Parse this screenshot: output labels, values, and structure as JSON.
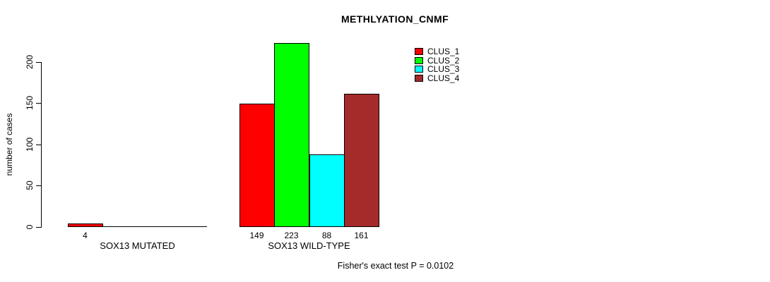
{
  "colors": {
    "background": "#FFFFFF",
    "axis": "#000000",
    "text": "#000000"
  },
  "chart_data": {
    "type": "bar",
    "title": "METHLYATION_CNMF",
    "ylabel": "number of cases",
    "xlabel": "",
    "ylim": [
      0,
      230
    ],
    "yticks": [
      0,
      50,
      100,
      150,
      200
    ],
    "grid": false,
    "legend_position": "top-right-inside",
    "series": [
      {
        "name": "CLUS_1",
        "color": "#FF0000"
      },
      {
        "name": "CLUS_2",
        "color": "#00FF00"
      },
      {
        "name": "CLUS_3",
        "color": "#00FFFF"
      },
      {
        "name": "CLUS_4",
        "color": "#A52A2A"
      }
    ],
    "categories": [
      "SOX13 MUTATED",
      "SOX13 WILD-TYPE"
    ],
    "groups": [
      {
        "label": "SOX13 MUTATED",
        "values": [
          4,
          0,
          0,
          0
        ],
        "bar_labels": [
          "4",
          "",
          "",
          ""
        ]
      },
      {
        "label": "SOX13 WILD-TYPE",
        "values": [
          149,
          223,
          88,
          161
        ],
        "bar_labels": [
          "149",
          "223",
          "88",
          "161"
        ]
      }
    ],
    "annotation": "Fisher's exact test P = 0.0102"
  }
}
